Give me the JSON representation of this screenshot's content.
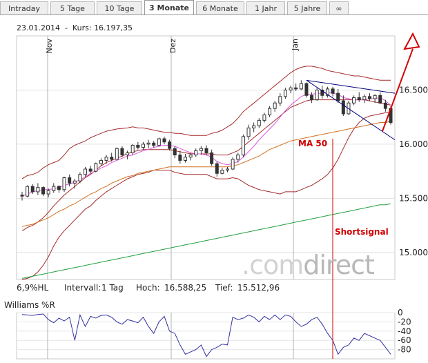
{
  "tabs": [
    {
      "label": "Intraday",
      "active": false
    },
    {
      "label": "5 Tage",
      "active": false
    },
    {
      "label": "10 Tage",
      "active": false
    },
    {
      "label": "3 Monate",
      "active": true
    },
    {
      "label": "6 Monate",
      "active": false
    },
    {
      "label": "1 Jahr",
      "active": false
    },
    {
      "label": "5 Jahre",
      "active": false
    },
    {
      "label": "∞",
      "active": false
    }
  ],
  "header": {
    "date": "23.01.2014",
    "kurs_label": "Kurs:",
    "kurs": "16.197,35"
  },
  "stats": {
    "indicator": "6,9%HL",
    "intervall_label": "Intervall:",
    "intervall": "1 Tag",
    "hoch_label": "Hoch:",
    "hoch": "16.588,25",
    "tief_label": "Tief:",
    "tief": "15.512,96"
  },
  "williams_label": "Williams %R",
  "logo": {
    "light": ".com",
    "dark": "direct"
  },
  "annotations": {
    "ma50": "MA 50",
    "shortsignal": "Shortsignal"
  },
  "colors": {
    "candles": "#333333",
    "bollinger": "#a52a2a",
    "ma_short": "#dd55dd",
    "ma50": "#d07020",
    "ma200": "#20a040",
    "trendlines": "#000080",
    "annotation": "#d00000",
    "williams": "#3030a0"
  },
  "chart_data": [
    {
      "type": "candlestick",
      "title": "",
      "xlabel": "",
      "ylabel": "",
      "x_tick_labels": [
        "Nov",
        "Dez",
        "Jan"
      ],
      "y_ticks": [
        15000,
        15500,
        16000,
        16500
      ],
      "y_tick_labels": [
        "15.000",
        "15.500",
        "16.000",
        "16.500"
      ],
      "ylim": [
        14750,
        17000
      ],
      "grid": true,
      "candles": [
        [
          15530,
          15560,
          15480,
          15520
        ],
        [
          15520,
          15620,
          15510,
          15610
        ],
        [
          15610,
          15630,
          15540,
          15560
        ],
        [
          15560,
          15640,
          15530,
          15600
        ],
        [
          15600,
          15610,
          15520,
          15540
        ],
        [
          15540,
          15590,
          15510,
          15570
        ],
        [
          15570,
          15640,
          15550,
          15610
        ],
        [
          15610,
          15620,
          15550,
          15580
        ],
        [
          15580,
          15700,
          15560,
          15690
        ],
        [
          15690,
          15720,
          15610,
          15640
        ],
        [
          15640,
          15680,
          15590,
          15660
        ],
        [
          15660,
          15740,
          15640,
          15720
        ],
        [
          15720,
          15790,
          15700,
          15770
        ],
        [
          15770,
          15800,
          15730,
          15750
        ],
        [
          15750,
          15830,
          15740,
          15820
        ],
        [
          15820,
          15870,
          15800,
          15850
        ],
        [
          15850,
          15900,
          15820,
          15880
        ],
        [
          15880,
          15920,
          15840,
          15860
        ],
        [
          15860,
          15970,
          15850,
          15960
        ],
        [
          15960,
          15980,
          15880,
          15900
        ],
        [
          15900,
          15940,
          15860,
          15920
        ],
        [
          15920,
          16000,
          15900,
          15990
        ],
        [
          15990,
          16020,
          15950,
          15970
        ],
        [
          15970,
          16020,
          15950,
          16000
        ],
        [
          16000,
          16040,
          15960,
          16010
        ],
        [
          16010,
          16030,
          15970,
          15990
        ],
        [
          15990,
          16060,
          15980,
          16050
        ],
        [
          16050,
          16070,
          16000,
          16020
        ],
        [
          16020,
          16040,
          15940,
          15960
        ],
        [
          15960,
          15980,
          15870,
          15900
        ],
        [
          15900,
          15940,
          15820,
          15850
        ],
        [
          15850,
          15910,
          15830,
          15880
        ],
        [
          15880,
          15920,
          15850,
          15900
        ],
        [
          15900,
          15960,
          15880,
          15940
        ],
        [
          15940,
          15980,
          15900,
          15960
        ],
        [
          15960,
          15990,
          15900,
          15920
        ],
        [
          15920,
          15950,
          15800,
          15820
        ],
        [
          15820,
          15840,
          15700,
          15730
        ],
        [
          15730,
          15780,
          15720,
          15760
        ],
        [
          15760,
          15790,
          15740,
          15770
        ],
        [
          15770,
          15880,
          15760,
          15860
        ],
        [
          15860,
          15920,
          15830,
          15900
        ],
        [
          15900,
          16090,
          15880,
          16070
        ],
        [
          16070,
          16180,
          16040,
          16150
        ],
        [
          16150,
          16200,
          16110,
          16170
        ],
        [
          16170,
          16240,
          16150,
          16220
        ],
        [
          16220,
          16290,
          16200,
          16270
        ],
        [
          16270,
          16350,
          16250,
          16330
        ],
        [
          16330,
          16400,
          16300,
          16380
        ],
        [
          16380,
          16470,
          16350,
          16440
        ],
        [
          16440,
          16520,
          16420,
          16500
        ],
        [
          16500,
          16540,
          16470,
          16520
        ],
        [
          16520,
          16560,
          16490,
          16510
        ],
        [
          16510,
          16590,
          16500,
          16560
        ],
        [
          16560,
          16570,
          16430,
          16450
        ],
        [
          16450,
          16480,
          16380,
          16410
        ],
        [
          16410,
          16520,
          16400,
          16500
        ],
        [
          16500,
          16540,
          16420,
          16450
        ],
        [
          16450,
          16530,
          16430,
          16510
        ],
        [
          16510,
          16530,
          16440,
          16470
        ],
        [
          16470,
          16510,
          16380,
          16400
        ],
        [
          16400,
          16450,
          16260,
          16280
        ],
        [
          16280,
          16400,
          16270,
          16380
        ],
        [
          16380,
          16450,
          16360,
          16430
        ],
        [
          16430,
          16480,
          16390,
          16410
        ],
        [
          16410,
          16460,
          16380,
          16440
        ],
        [
          16440,
          16470,
          16400,
          16420
        ],
        [
          16420,
          16460,
          16380,
          16450
        ],
        [
          16450,
          16480,
          16370,
          16380
        ],
        [
          16380,
          16410,
          16300,
          16330
        ],
        [
          16330,
          16350,
          16180,
          16200
        ]
      ],
      "series": [
        {
          "role": "bollinger-upper",
          "values": [
            15680,
            15710,
            15720,
            15740,
            15780,
            15810,
            15830,
            15850,
            15900,
            15960,
            15990,
            16010,
            16030,
            16060,
            16080,
            16100,
            16120,
            16130,
            16140,
            16145,
            16150,
            16160,
            16150,
            16150,
            16140,
            16130,
            16120,
            16110,
            16110,
            16100,
            16100,
            16090,
            16080,
            16080,
            16080,
            16080,
            16100,
            16110,
            16130,
            16160,
            16190,
            16240,
            16300,
            16340,
            16380,
            16420,
            16460,
            16500,
            16540,
            16580,
            16620,
            16660,
            16690,
            16710,
            16720,
            16720,
            16710,
            16700,
            16680,
            16670,
            16660,
            16650,
            16640,
            16630,
            16630,
            16620,
            16610,
            16600,
            16590,
            16590,
            16590
          ]
        },
        {
          "role": "bollinger-lower",
          "values": [
            14750,
            14760,
            14780,
            14820,
            14880,
            14960,
            15060,
            15140,
            15200,
            15250,
            15300,
            15350,
            15400,
            15430,
            15480,
            15520,
            15560,
            15590,
            15620,
            15650,
            15680,
            15700,
            15720,
            15730,
            15740,
            15760,
            15760,
            15760,
            15760,
            15740,
            15730,
            15720,
            15720,
            15720,
            15720,
            15720,
            15700,
            15680,
            15680,
            15680,
            15690,
            15680,
            15650,
            15620,
            15600,
            15580,
            15570,
            15560,
            15550,
            15540,
            15560,
            15560,
            15560,
            15580,
            15600,
            15620,
            15650,
            15680,
            15720,
            15780,
            15860,
            15960,
            16060,
            16140,
            16200,
            16240,
            16260,
            16270,
            16280,
            16290,
            16300
          ]
        },
        {
          "role": "bollinger-mid",
          "values": [
            15200,
            15230,
            15250,
            15280,
            15320,
            15370,
            15430,
            15480,
            15530,
            15570,
            15610,
            15650,
            15690,
            15720,
            15760,
            15800,
            15830,
            15850,
            15870,
            15890,
            15910,
            15930,
            15940,
            15950,
            15950,
            15950,
            15950,
            15950,
            15950,
            15940,
            15930,
            15920,
            15910,
            15910,
            15910,
            15910,
            15910,
            15900,
            15900,
            15900,
            15920,
            15940,
            15980,
            16020,
            16060,
            16100,
            16140,
            16180,
            16220,
            16260,
            16300,
            16340,
            16360,
            16380,
            16400,
            16410,
            16410,
            16410,
            16410,
            16410,
            16410,
            16410,
            16410,
            16410,
            16410,
            16410,
            16400,
            16390,
            16380,
            16370,
            16360
          ]
        },
        {
          "role": "ma-short",
          "values": [
            15520,
            15540,
            15560,
            15570,
            15580,
            15580,
            15590,
            15600,
            15620,
            15630,
            15650,
            15670,
            15700,
            15730,
            15750,
            15780,
            15800,
            15830,
            15850,
            15870,
            15890,
            15900,
            15920,
            15940,
            15950,
            15970,
            15980,
            15990,
            15990,
            15980,
            15960,
            15940,
            15920,
            15910,
            15910,
            15900,
            15880,
            15840,
            15820,
            15810,
            15820,
            15840,
            15880,
            15930,
            15980,
            16040,
            16090,
            16140,
            16190,
            16250,
            16310,
            16360,
            16400,
            16440,
            16460,
            16460,
            16470,
            16470,
            16480,
            16470,
            16460,
            16430,
            16420,
            16410,
            16410,
            16410,
            16420,
            16420,
            16430,
            16400,
            16360
          ]
        },
        {
          "role": "ma50",
          "values": [
            15240,
            15250,
            15260,
            15280,
            15300,
            15320,
            15350,
            15380,
            15400,
            15430,
            15450,
            15480,
            15510,
            15540,
            15560,
            15590,
            15610,
            15640,
            15660,
            15680,
            15700,
            15710,
            15730,
            15740,
            15750,
            15760,
            15770,
            15780,
            15790,
            15790,
            15790,
            15790,
            15790,
            15790,
            15790,
            15790,
            15790,
            15790,
            15790,
            15790,
            15800,
            15810,
            15830,
            15850,
            15870,
            15890,
            15920,
            15950,
            15970,
            15990,
            16010,
            16030,
            16040,
            16050,
            16060,
            16070,
            16080,
            16090,
            16100,
            16110,
            16120,
            16130,
            16140,
            16150,
            16160,
            16170,
            16180,
            16190,
            16200,
            16200,
            16210
          ]
        },
        {
          "role": "ma200",
          "values": [
            14760,
            14770,
            14780,
            14790,
            14800,
            14810,
            14820,
            14830,
            14840,
            14850,
            14860,
            14870,
            14880,
            14890,
            14900,
            14910,
            14920,
            14930,
            14940,
            14950,
            14960,
            14970,
            14980,
            14990,
            15000,
            15010,
            15020,
            15030,
            15040,
            15050,
            15060,
            15070,
            15080,
            15090,
            15100,
            15110,
            15120,
            15130,
            15140,
            15150,
            15160,
            15170,
            15180,
            15190,
            15200,
            15210,
            15220,
            15230,
            15240,
            15250,
            15260,
            15270,
            15280,
            15290,
            15300,
            15310,
            15320,
            15330,
            15340,
            15350,
            15360,
            15370,
            15380,
            15390,
            15400,
            15410,
            15420,
            15430,
            15440,
            15440,
            15450
          ]
        }
      ]
    },
    {
      "type": "line",
      "title": "",
      "y_ticks": [
        0,
        -20,
        -40,
        -60,
        -80
      ],
      "y_tick_labels": [
        "0",
        "-20",
        "-40",
        "-60",
        "-80"
      ],
      "ylim": [
        -100,
        0
      ],
      "series": [
        {
          "role": "williams-r",
          "values": [
            -4,
            -5,
            -6,
            -4,
            -3,
            -15,
            -22,
            -12,
            -18,
            -10,
            -60,
            -5,
            -30,
            -8,
            -12,
            -6,
            -5,
            -10,
            -20,
            -25,
            -15,
            -18,
            -22,
            -10,
            -30,
            -45,
            -20,
            -8,
            -40,
            -45,
            -70,
            -90,
            -85,
            -80,
            -70,
            -95,
            -80,
            -75,
            -68,
            -70,
            -10,
            -15,
            -12,
            -5,
            -10,
            -20,
            -8,
            -15,
            -5,
            -15,
            -5,
            -8,
            -20,
            -30,
            -25,
            -15,
            -10,
            -25,
            -45,
            -60,
            -90,
            -75,
            -70,
            -55,
            -60,
            -45,
            -50,
            -55,
            -60,
            -75,
            -90
          ]
        }
      ]
    }
  ]
}
